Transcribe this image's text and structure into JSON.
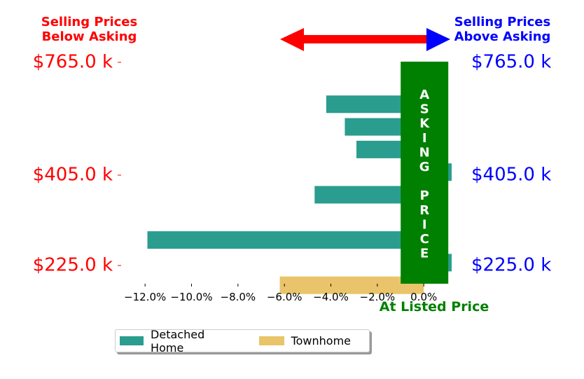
{
  "colors": {
    "detached": "#2a9d8f",
    "townhome": "#e9c46a",
    "asking_box": "#008000",
    "below": "#ff0000",
    "above": "#0000ff",
    "at_listed": "#008000"
  },
  "annotations": {
    "below_label": [
      "Selling Prices",
      "Below Asking"
    ],
    "above_label": [
      "Selling Prices",
      "Above Asking"
    ],
    "asking_price_letters": [
      "A",
      "S",
      "K",
      "I",
      "N",
      "G",
      "",
      "P",
      "R",
      "I",
      "C",
      "E"
    ],
    "at_listed_price": "At Listed Price"
  },
  "chart_data": {
    "type": "bar",
    "orientation": "horizontal",
    "xlim": [
      -13.0,
      1.2
    ],
    "x_ticks": [
      -12,
      -10,
      -8,
      -6,
      -4,
      -2,
      0
    ],
    "x_tick_labels": [
      "−12.0%",
      "−10.0%",
      "−8.0%",
      "−6.0%",
      "−4.0%",
      "−2.0%",
      "0.0%"
    ],
    "y_tick_labels_left": [
      {
        "label": "$765.0 k",
        "row": 0
      },
      {
        "label": "$405.0 k",
        "row": 5
      },
      {
        "label": "$225.0 k",
        "row": 9
      }
    ],
    "y_tick_labels_right": [
      {
        "label": "$765.0 k",
        "row": 0
      },
      {
        "label": "$405.0 k",
        "row": 5
      },
      {
        "label": "$225.0 k",
        "row": 9
      }
    ],
    "rows": 10,
    "bars": [
      {
        "row": 1,
        "value": -4.2,
        "series": "Detached Home"
      },
      {
        "row": 2,
        "value": -3.4,
        "series": "Detached Home"
      },
      {
        "row": 3,
        "value": -2.9,
        "series": "Detached Home"
      },
      {
        "row": 4,
        "value": 1.2,
        "series": "Detached Home"
      },
      {
        "row": 5,
        "value": -4.7,
        "series": "Detached Home"
      },
      {
        "row": 6,
        "value": -0.2,
        "series": "Townhome"
      },
      {
        "row": 7,
        "value": -11.9,
        "series": "Detached Home"
      },
      {
        "row": 8,
        "value": 1.2,
        "series": "Detached Home"
      },
      {
        "row": 9,
        "value": -6.2,
        "series": "Townhome"
      }
    ],
    "series": [
      {
        "name": "Detached Home"
      },
      {
        "name": "Townhome"
      }
    ],
    "legend_position": "bottom-left",
    "grid": false
  }
}
